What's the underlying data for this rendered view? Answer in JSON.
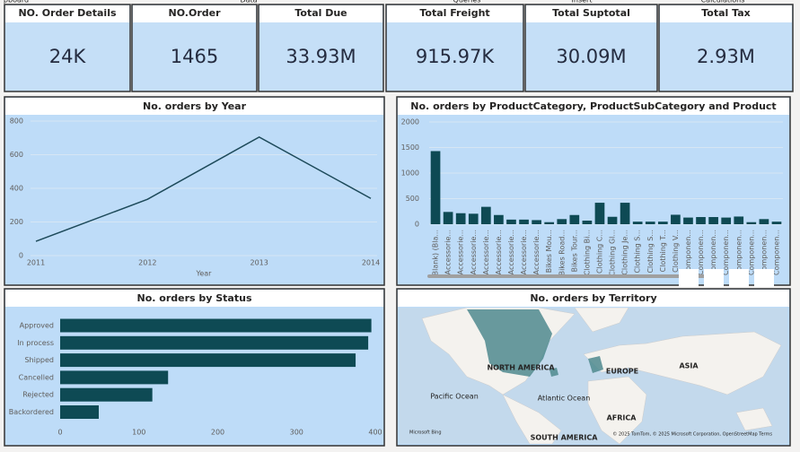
{
  "ribbon": [
    "pboard",
    "Data",
    "Queries",
    "Insert",
    "Calculations"
  ],
  "kpis": [
    {
      "label": "NO. Order Details",
      "value": "24K"
    },
    {
      "label": "NO.Order",
      "value": "1465"
    },
    {
      "label": "Total Due",
      "value": "33.93M"
    },
    {
      "label": "Total Freight",
      "value": "915.97K"
    },
    {
      "label": "Total Suptotal",
      "value": "30.09M"
    },
    {
      "label": "Total Tax",
      "value": "2.93M"
    }
  ],
  "chart_data": [
    {
      "type": "line",
      "title": "No. orders by Year",
      "x_label": "Year",
      "categories": [
        "2011",
        "2012",
        "2013",
        "2014"
      ],
      "values": [
        85,
        335,
        705,
        340
      ],
      "color": "#1d4a5a",
      "ylim": [
        0,
        800
      ],
      "yticks": [
        0,
        200,
        400,
        600,
        800
      ],
      "grid": true
    },
    {
      "type": "bar",
      "title": "No. orders by ProductCategory, ProductSubCategory and Product",
      "categories": [
        "(Blank) (Bla...",
        "Accessorie...",
        "Accessorie...",
        "Accessorie...",
        "Accessorie...",
        "Accessorie...",
        "Accessorie...",
        "Accessorie...",
        "Accessorie...",
        "Bikes Mou...",
        "Bikes Road...",
        "Bikes Tour...",
        "Clothing Bi...",
        "Clothing C...",
        "Clothing Gl...",
        "Clothing Je...",
        "Clothing S...",
        "Clothing S...",
        "Clothing T...",
        "Clothing V...",
        "Componen...",
        "Componen...",
        "Componen...",
        "Componen...",
        "Componen...",
        "Componen...",
        "Componen...",
        "Componen..."
      ],
      "values": [
        1430,
        240,
        215,
        205,
        340,
        180,
        90,
        90,
        80,
        40,
        100,
        180,
        70,
        420,
        145,
        420,
        50,
        50,
        50,
        185,
        130,
        140,
        140,
        130,
        150,
        40,
        100,
        50
      ],
      "color": "#0e4a54",
      "ylim": [
        0,
        2000
      ],
      "yticks": [
        0,
        500,
        1000,
        1500,
        2000
      ],
      "grid": true
    },
    {
      "type": "hbar",
      "title": "No. orders by Status",
      "categories": [
        "Approved",
        "In process",
        "Shipped",
        "Cancelled",
        "Rejected",
        "Backordered"
      ],
      "values": [
        395,
        391,
        375,
        137,
        117,
        49
      ],
      "color": "#0e4a54",
      "xlim": [
        0,
        400
      ],
      "xticks": [
        0,
        100,
        200,
        300,
        400
      ]
    }
  ],
  "map": {
    "title": "No. orders by Territory",
    "labels": [
      "NORTH AMERICA",
      "EUROPE",
      "ASIA",
      "Pacific Ocean",
      "Atlantic Ocean",
      "AFRICA",
      "SOUTH AMERICA"
    ],
    "brand": "Microsoft Bing",
    "attribution": "© 2025 TomTom, © 2025 Microsoft Corporation, OpenStreetMap Terms"
  }
}
